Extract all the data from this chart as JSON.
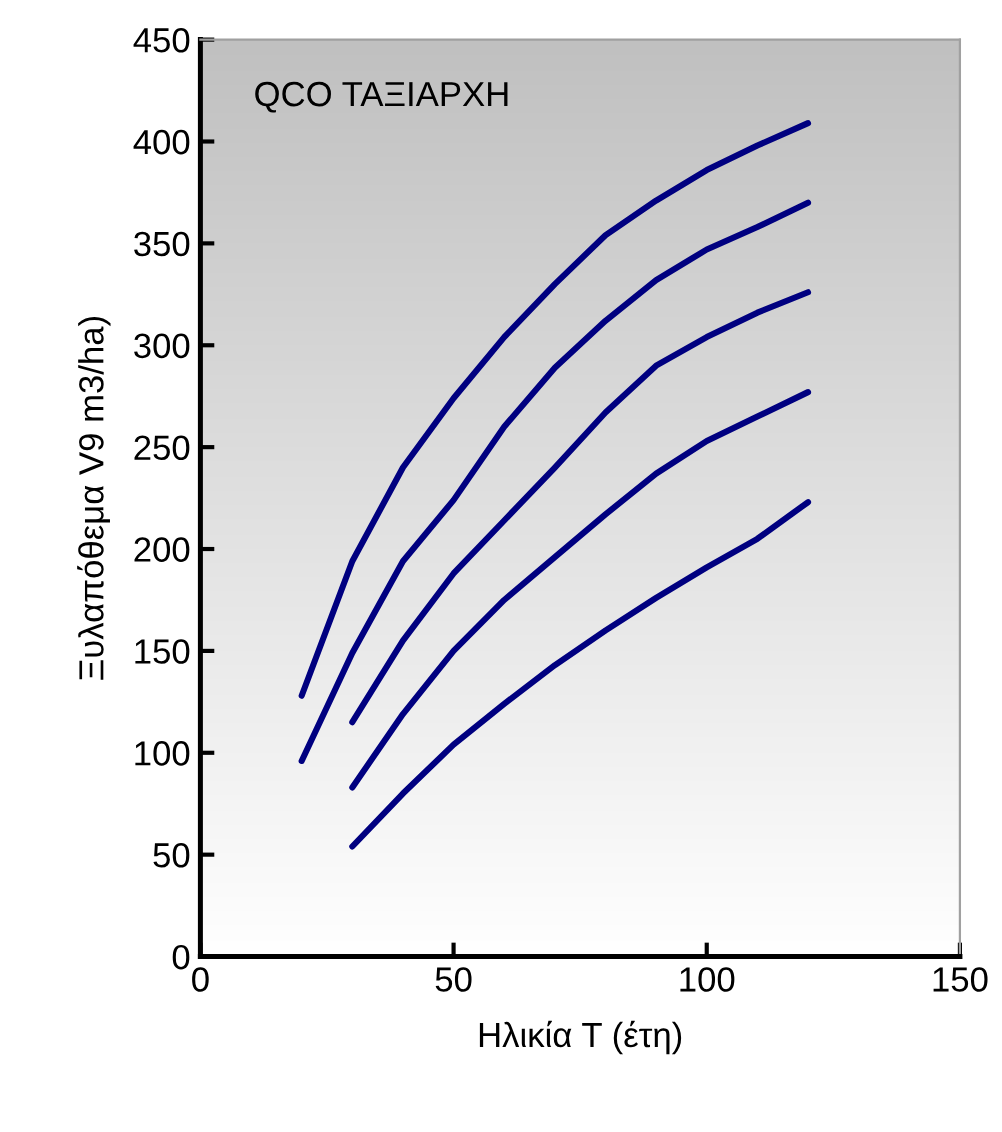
{
  "chart_data": {
    "type": "line",
    "xlabel": "Ηλικία Τ (έτη)",
    "ylabel": "Ξυλαπόθεμα V9 m3/ha)",
    "annotations": [
      "QCO ΤΑΞΙΑΡΧΗ"
    ],
    "series": [
      {
        "color": "#000080",
        "x": [
          20,
          30,
          40,
          50,
          60,
          70,
          80,
          90,
          100,
          110,
          120
        ],
        "values": [
          128,
          194,
          240,
          274,
          304,
          330,
          354,
          371,
          386,
          398,
          409
        ]
      },
      {
        "color": "#000080",
        "x": [
          20,
          30,
          40,
          50,
          60,
          70,
          80,
          90,
          100,
          110,
          120
        ],
        "values": [
          96,
          149,
          194,
          224,
          260,
          289,
          312,
          332,
          347,
          358,
          370
        ]
      },
      {
        "color": "#000080",
        "x": [
          30,
          40,
          50,
          60,
          70,
          80,
          90,
          100,
          110,
          120
        ],
        "values": [
          115,
          155,
          188,
          214,
          240,
          267,
          290,
          304,
          316,
          326
        ]
      },
      {
        "color": "#000080",
        "x": [
          30,
          40,
          50,
          60,
          70,
          80,
          90,
          100,
          110,
          120
        ],
        "values": [
          83,
          119,
          150,
          175,
          196,
          217,
          237,
          253,
          265,
          277
        ]
      },
      {
        "color": "#000080",
        "x": [
          30,
          40,
          50,
          60,
          70,
          80,
          90,
          100,
          110,
          120
        ],
        "values": [
          54,
          80,
          104,
          124,
          143,
          160,
          176,
          191,
          205,
          223
        ]
      }
    ],
    "xlim": [
      0,
      150
    ],
    "xticks": [
      0,
      50,
      100,
      150
    ],
    "ylim": [
      0,
      450
    ],
    "yticks": [
      0,
      50,
      100,
      150,
      200,
      250,
      300,
      350,
      400,
      450
    ],
    "grid": false,
    "marker": "none",
    "line_style": "solid"
  }
}
